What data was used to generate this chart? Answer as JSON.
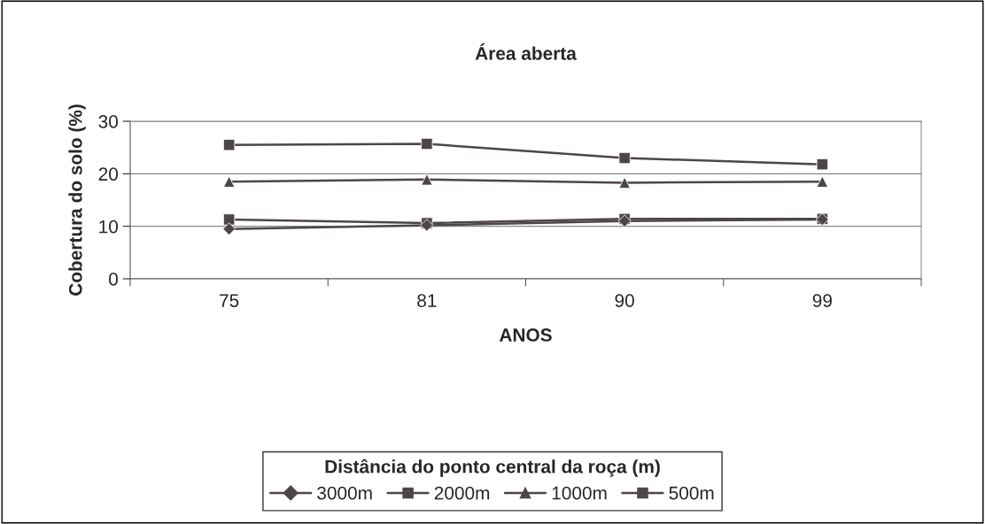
{
  "chart_data": {
    "type": "line",
    "title": "Área aberta",
    "xlabel": "ANOS",
    "ylabel": "Cobertura do solo (%)",
    "legend_title": "Distância do ponto central da roça (m)",
    "categories": [
      "75",
      "81",
      "90",
      "99"
    ],
    "series": [
      {
        "name": "3000m",
        "color": "#4d4646",
        "marker": "diamond",
        "values": [
          9.5,
          10.2,
          11.0,
          11.3
        ]
      },
      {
        "name": "2000m",
        "color": "#4d4646",
        "marker": "square",
        "values": [
          11.3,
          10.6,
          11.4,
          11.4
        ]
      },
      {
        "name": "1000m",
        "color": "#4d4646",
        "marker": "triangle",
        "values": [
          18.5,
          18.9,
          18.3,
          18.5
        ]
      },
      {
        "name": "500m",
        "color": "#4d4646",
        "marker": "square",
        "values": [
          25.5,
          25.7,
          23.0,
          21.8
        ]
      }
    ],
    "ylim": [
      0,
      30
    ],
    "yticks": [
      0,
      10,
      20,
      30
    ],
    "grid": "y",
    "legend": "bottom",
    "line_style": "solid"
  }
}
